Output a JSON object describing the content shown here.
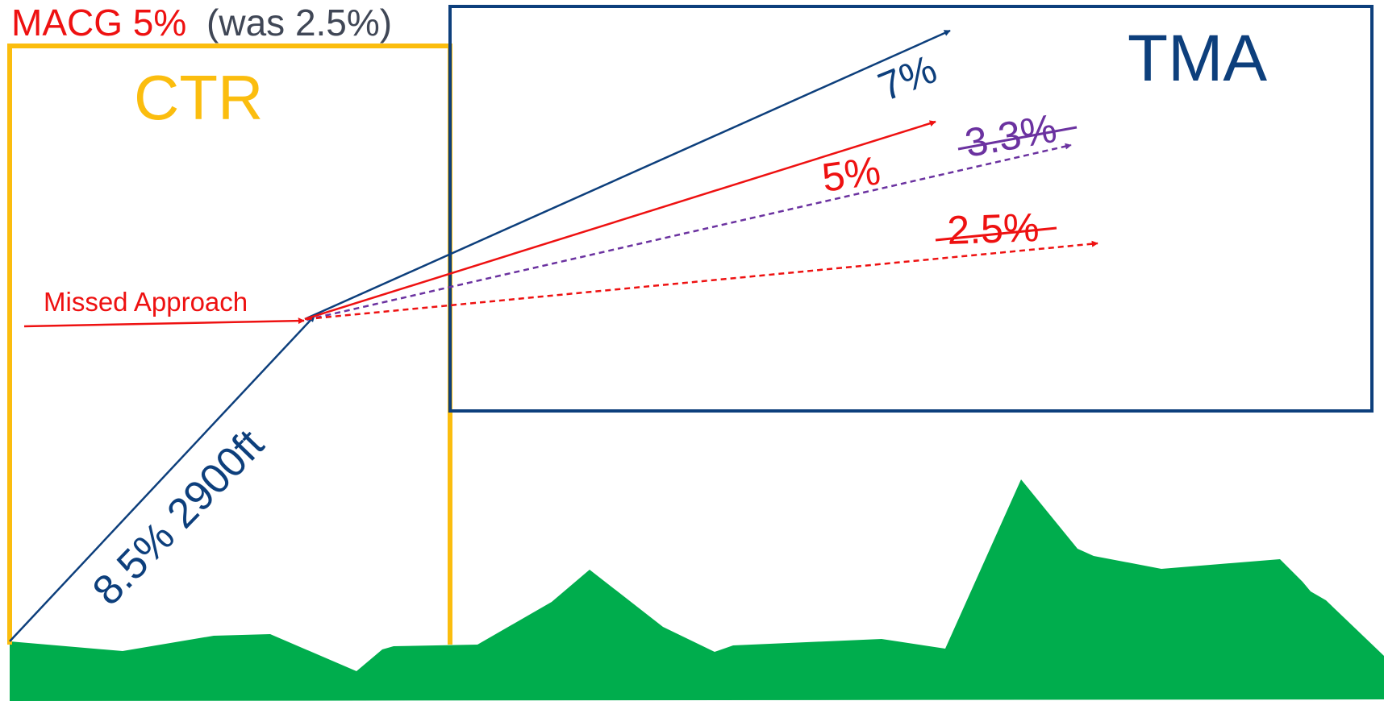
{
  "header": {
    "title_main": "MACG 5%",
    "title_note": "(was 2.5%)"
  },
  "zones": {
    "ctr_label": "CTR",
    "tma_label": "TMA"
  },
  "paths": {
    "missed_approach": "Missed Approach",
    "initial_climb": "8.5% 2900ft",
    "gradient_7": "7%",
    "gradient_5": "5%",
    "gradient_3_3_struck": "3.3%",
    "gradient_2_5_struck": "2.5%"
  },
  "colors": {
    "red": "#ee1111",
    "navy": "#0d3f7c",
    "gold": "#fbbd0e",
    "purple": "#6b32a0",
    "terrain": "#00ad4d",
    "gray_text": "#404756"
  }
}
